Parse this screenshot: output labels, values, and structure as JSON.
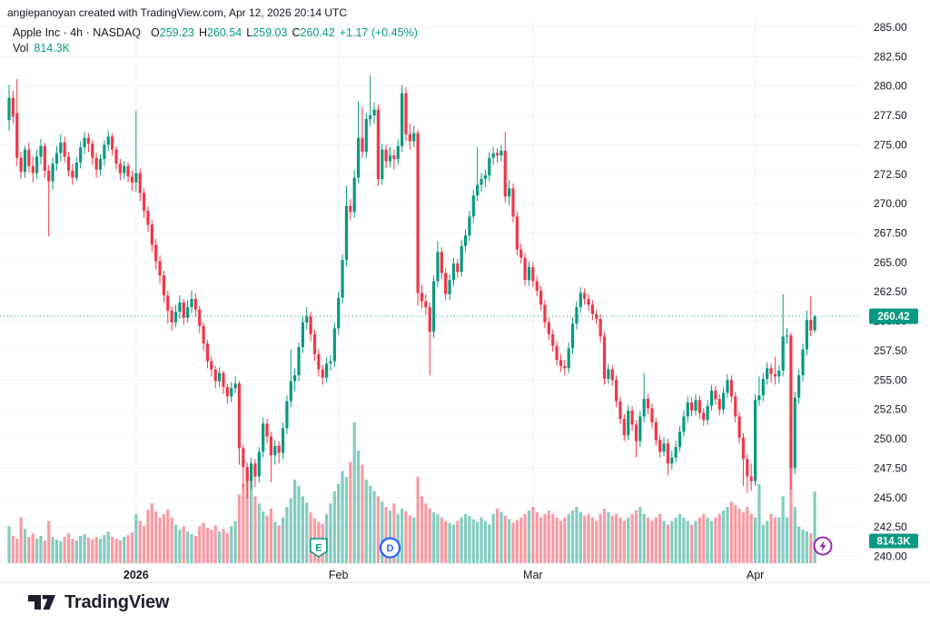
{
  "header": {
    "attribution": "angiepanoyan created with TradingView.com, Apr 12, 2026 20:14 UTC"
  },
  "legend": {
    "title": "Apple Inc · 4h · NASDAQ",
    "o_label": "O",
    "o": "259.23",
    "h_label": "H",
    "h": "260.54",
    "l_label": "L",
    "l": "259.03",
    "c_label": "C",
    "c": "260.42",
    "change": "+1.17 (+0.45%)",
    "vol_label": "Vol",
    "vol": "814.3K"
  },
  "badges": {
    "price": "260.42",
    "volume": "814.3K"
  },
  "price_axis": {
    "ticks": [
      "285.00",
      "282.50",
      "280.00",
      "277.50",
      "275.00",
      "272.50",
      "270.00",
      "267.50",
      "265.00",
      "262.50",
      "260.00",
      "257.50",
      "255.00",
      "252.50",
      "250.00",
      "247.50",
      "245.00",
      "242.50",
      "240.00"
    ]
  },
  "time_axis": {
    "ticks": [
      {
        "label": "2026",
        "idx": 32,
        "bold": true
      },
      {
        "label": "Feb",
        "idx": 83,
        "bold": false
      },
      {
        "label": "Mar",
        "idx": 132,
        "bold": false
      },
      {
        "label": "Apr",
        "idx": 188,
        "bold": false
      }
    ]
  },
  "markers": [
    {
      "type": "earnings",
      "label": "E",
      "idx": 78,
      "color": "#089981"
    },
    {
      "type": "dividends",
      "label": "D",
      "idx": 96,
      "color": "#2962FF"
    },
    {
      "type": "flash",
      "label": "",
      "x": 906,
      "color": "#9C27B0"
    }
  ],
  "footer": {
    "brand": "TradingView"
  },
  "colors": {
    "up": "#089981",
    "down": "#F23645",
    "grid": "#f0f3fa",
    "text": "#131722",
    "badge_text": "#ffffff",
    "vol_opacity": 0.5
  },
  "chart_data": {
    "type": "candlestick",
    "symbol": "Apple Inc",
    "interval": "4h",
    "exchange": "NASDAQ",
    "ylim": [
      240,
      285
    ],
    "ystep": 2.5,
    "grid": true,
    "last_close": 260.42,
    "last_volume_k": 814.3,
    "candles": [
      [
        277.1,
        280.1,
        276.2,
        279.0
      ],
      [
        279.0,
        279.6,
        276.8,
        277.4
      ],
      [
        277.7,
        280.6,
        273.2,
        273.9
      ],
      [
        273.9,
        274.4,
        272.1,
        272.7
      ],
      [
        272.7,
        274.9,
        272.2,
        274.6
      ],
      [
        274.6,
        275.2,
        272.6,
        273.2
      ],
      [
        273.2,
        274.0,
        271.8,
        272.6
      ],
      [
        272.6,
        274.6,
        272.1,
        274.0
      ],
      [
        274.0,
        275.5,
        273.3,
        274.9
      ],
      [
        274.9,
        275.2,
        272.2,
        272.8
      ],
      [
        272.8,
        273.3,
        267.2,
        271.9
      ],
      [
        271.9,
        273.9,
        271.2,
        273.4
      ],
      [
        273.4,
        274.9,
        272.8,
        274.3
      ],
      [
        274.3,
        275.9,
        273.6,
        275.2
      ],
      [
        275.2,
        275.7,
        273.5,
        274.0
      ],
      [
        274.0,
        274.4,
        272.3,
        272.8
      ],
      [
        272.8,
        273.4,
        271.6,
        272.2
      ],
      [
        272.2,
        274.0,
        271.9,
        273.5
      ],
      [
        273.5,
        275.3,
        273.0,
        274.8
      ],
      [
        274.8,
        276.1,
        274.2,
        275.6
      ],
      [
        275.6,
        276.0,
        274.4,
        275.1
      ],
      [
        275.1,
        275.4,
        273.3,
        273.9
      ],
      [
        273.9,
        274.3,
        272.2,
        272.9
      ],
      [
        272.9,
        274.2,
        272.4,
        273.8
      ],
      [
        273.8,
        275.4,
        273.2,
        275.0
      ],
      [
        275.0,
        276.2,
        274.5,
        275.7
      ],
      [
        275.7,
        276.0,
        274.1,
        274.6
      ],
      [
        274.6,
        274.9,
        272.9,
        273.4
      ],
      [
        273.4,
        273.8,
        272.0,
        272.6
      ],
      [
        272.6,
        273.6,
        272.1,
        273.2
      ],
      [
        273.2,
        273.5,
        271.8,
        272.3
      ],
      [
        272.3,
        272.8,
        271.1,
        271.8
      ],
      [
        271.8,
        277.9,
        271.0,
        272.6
      ],
      [
        272.6,
        273.0,
        270.2,
        270.9
      ],
      [
        270.9,
        271.3,
        268.8,
        269.4
      ],
      [
        269.4,
        269.8,
        267.6,
        268.2
      ],
      [
        268.2,
        268.6,
        265.9,
        266.5
      ],
      [
        266.5,
        267.0,
        264.4,
        265.1
      ],
      [
        265.1,
        265.6,
        263.2,
        263.9
      ],
      [
        263.9,
        264.3,
        261.6,
        262.2
      ],
      [
        262.2,
        262.6,
        259.8,
        260.9
      ],
      [
        260.9,
        261.3,
        259.2,
        259.9
      ],
      [
        259.9,
        261.4,
        259.5,
        260.8
      ],
      [
        260.8,
        262.2,
        260.2,
        261.6
      ],
      [
        261.6,
        261.9,
        259.7,
        260.3
      ],
      [
        260.3,
        261.8,
        259.9,
        261.2
      ],
      [
        261.2,
        262.6,
        260.7,
        261.9
      ],
      [
        261.9,
        262.4,
        260.4,
        261.0
      ],
      [
        261.0,
        261.3,
        259.0,
        259.6
      ],
      [
        259.6,
        259.9,
        257.5,
        258.1
      ],
      [
        258.1,
        258.4,
        256.0,
        256.6
      ],
      [
        256.6,
        257.0,
        255.3,
        255.9
      ],
      [
        255.9,
        256.2,
        254.3,
        254.9
      ],
      [
        254.9,
        256.1,
        254.4,
        255.6
      ],
      [
        255.6,
        255.8,
        253.8,
        254.4
      ],
      [
        254.4,
        254.7,
        253.0,
        253.6
      ],
      [
        253.6,
        254.8,
        253.1,
        254.3
      ],
      [
        254.3,
        255.3,
        253.9,
        254.7
      ],
      [
        254.7,
        254.9,
        247.8,
        249.2
      ],
      [
        249.2,
        249.5,
        245.9,
        247.6
      ],
      [
        247.6,
        248.0,
        244.9,
        246.4
      ],
      [
        246.4,
        248.4,
        245.7,
        247.9
      ],
      [
        247.9,
        248.3,
        245.9,
        246.8
      ],
      [
        246.8,
        249.3,
        246.3,
        248.9
      ],
      [
        248.9,
        251.8,
        248.4,
        251.3
      ],
      [
        251.3,
        251.7,
        249.6,
        250.2
      ],
      [
        250.2,
        250.6,
        246.3,
        248.6
      ],
      [
        248.6,
        249.9,
        247.8,
        249.4
      ],
      [
        249.4,
        249.8,
        247.9,
        248.8
      ],
      [
        248.8,
        251.4,
        248.3,
        250.9
      ],
      [
        250.9,
        253.7,
        250.4,
        253.2
      ],
      [
        253.2,
        257.6,
        252.7,
        254.9
      ],
      [
        254.9,
        256.0,
        254.1,
        255.4
      ],
      [
        255.4,
        258.2,
        254.9,
        257.8
      ],
      [
        257.8,
        260.4,
        257.3,
        259.9
      ],
      [
        259.9,
        261.2,
        259.3,
        260.4
      ],
      [
        260.4,
        260.8,
        258.3,
        258.9
      ],
      [
        258.9,
        259.3,
        256.6,
        257.2
      ],
      [
        257.2,
        257.6,
        255.3,
        255.9
      ],
      [
        255.9,
        256.3,
        254.6,
        255.2
      ],
      [
        255.2,
        256.9,
        254.8,
        256.4
      ],
      [
        256.4,
        257.1,
        255.8,
        256.6
      ],
      [
        256.6,
        259.9,
        256.1,
        259.4
      ],
      [
        259.4,
        262.5,
        258.9,
        262.0
      ],
      [
        262.0,
        265.7,
        261.5,
        265.2
      ],
      [
        265.2,
        271.5,
        264.7,
        269.8
      ],
      [
        269.8,
        270.4,
        268.6,
        269.3
      ],
      [
        269.3,
        272.8,
        268.8,
        272.2
      ],
      [
        272.2,
        278.7,
        271.7,
        275.6
      ],
      [
        275.6,
        278.2,
        273.9,
        274.4
      ],
      [
        274.4,
        277.7,
        273.9,
        277.2
      ],
      [
        277.2,
        280.9,
        276.6,
        277.5
      ],
      [
        277.5,
        278.6,
        276.8,
        278.0
      ],
      [
        278.0,
        278.4,
        271.5,
        272.1
      ],
      [
        272.1,
        275.1,
        271.6,
        274.6
      ],
      [
        274.6,
        275.0,
        273.0,
        273.6
      ],
      [
        273.6,
        274.8,
        273.1,
        274.1
      ],
      [
        274.1,
        274.6,
        272.9,
        273.8
      ],
      [
        273.8,
        275.5,
        273.3,
        274.9
      ],
      [
        274.9,
        280.1,
        274.4,
        279.4
      ],
      [
        279.4,
        279.9,
        275.3,
        275.9
      ],
      [
        275.9,
        276.8,
        274.6,
        275.3
      ],
      [
        275.3,
        276.6,
        274.8,
        276.0
      ],
      [
        276.0,
        276.3,
        261.3,
        262.4
      ],
      [
        262.4,
        263.1,
        261.1,
        261.7
      ],
      [
        261.7,
        262.3,
        260.6,
        261.2
      ],
      [
        261.2,
        261.6,
        255.4,
        259.1
      ],
      [
        259.1,
        263.9,
        258.6,
        263.4
      ],
      [
        263.4,
        266.8,
        262.9,
        265.9
      ],
      [
        265.9,
        266.3,
        263.6,
        264.1
      ],
      [
        264.1,
        264.5,
        261.8,
        262.3
      ],
      [
        262.3,
        264.0,
        261.8,
        263.5
      ],
      [
        263.5,
        265.4,
        263.0,
        264.9
      ],
      [
        264.9,
        265.3,
        263.7,
        264.2
      ],
      [
        264.2,
        266.9,
        263.8,
        266.4
      ],
      [
        266.4,
        267.8,
        265.9,
        267.3
      ],
      [
        267.3,
        269.4,
        266.8,
        268.9
      ],
      [
        268.9,
        271.2,
        268.4,
        270.7
      ],
      [
        270.7,
        274.8,
        270.2,
        271.6
      ],
      [
        271.6,
        272.6,
        271.0,
        272.1
      ],
      [
        272.1,
        272.9,
        271.4,
        272.4
      ],
      [
        272.4,
        274.4,
        271.9,
        273.9
      ],
      [
        273.9,
        274.8,
        273.3,
        274.3
      ],
      [
        274.3,
        274.7,
        273.5,
        274.1
      ],
      [
        274.1,
        275.0,
        273.6,
        274.5
      ],
      [
        274.5,
        276.1,
        270.1,
        270.6
      ],
      [
        270.6,
        272.0,
        269.9,
        271.3
      ],
      [
        271.3,
        271.7,
        268.4,
        268.9
      ],
      [
        268.9,
        269.3,
        265.6,
        266.1
      ],
      [
        266.1,
        266.6,
        264.9,
        265.4
      ],
      [
        265.4,
        265.8,
        263.0,
        263.5
      ],
      [
        263.5,
        265.1,
        263.0,
        264.6
      ],
      [
        264.6,
        265.0,
        262.9,
        263.4
      ],
      [
        263.4,
        263.8,
        262.1,
        262.6
      ],
      [
        262.6,
        263.0,
        260.9,
        261.4
      ],
      [
        261.4,
        261.8,
        259.4,
        259.9
      ],
      [
        259.9,
        260.3,
        258.4,
        258.9
      ],
      [
        258.9,
        259.3,
        257.4,
        257.9
      ],
      [
        257.9,
        258.3,
        256.2,
        256.7
      ],
      [
        256.7,
        257.2,
        255.7,
        256.2
      ],
      [
        256.2,
        256.7,
        255.4,
        256.0
      ],
      [
        256.0,
        258.2,
        255.6,
        257.7
      ],
      [
        257.7,
        260.3,
        257.2,
        259.8
      ],
      [
        259.8,
        261.7,
        259.3,
        261.2
      ],
      [
        261.2,
        262.9,
        260.7,
        262.4
      ],
      [
        262.4,
        262.8,
        261.4,
        261.9
      ],
      [
        261.9,
        262.3,
        260.9,
        261.4
      ],
      [
        261.4,
        261.8,
        260.1,
        260.6
      ],
      [
        260.6,
        261.0,
        259.7,
        260.2
      ],
      [
        260.2,
        260.6,
        258.2,
        258.7
      ],
      [
        258.7,
        259.1,
        254.6,
        255.1
      ],
      [
        255.1,
        256.4,
        254.7,
        255.9
      ],
      [
        255.9,
        256.3,
        254.5,
        255.0
      ],
      [
        255.0,
        255.4,
        252.7,
        253.2
      ],
      [
        253.2,
        253.6,
        251.2,
        251.7
      ],
      [
        251.7,
        252.1,
        249.8,
        250.3
      ],
      [
        250.3,
        252.9,
        249.9,
        252.4
      ],
      [
        252.4,
        252.8,
        250.7,
        251.2
      ],
      [
        251.2,
        251.6,
        248.4,
        249.8
      ],
      [
        249.8,
        252.4,
        249.3,
        251.9
      ],
      [
        251.9,
        255.6,
        251.4,
        253.4
      ],
      [
        253.4,
        253.8,
        252.1,
        252.6
      ],
      [
        252.6,
        253.0,
        250.9,
        251.4
      ],
      [
        251.4,
        251.8,
        249.4,
        249.9
      ],
      [
        249.9,
        250.3,
        248.4,
        248.9
      ],
      [
        248.9,
        250.1,
        248.5,
        249.6
      ],
      [
        249.6,
        250.0,
        246.9,
        247.9
      ],
      [
        247.9,
        249.0,
        247.4,
        248.4
      ],
      [
        248.4,
        249.8,
        248.0,
        249.3
      ],
      [
        249.3,
        251.1,
        248.9,
        250.6
      ],
      [
        250.6,
        252.4,
        250.2,
        251.9
      ],
      [
        251.9,
        253.6,
        251.4,
        253.1
      ],
      [
        253.1,
        253.5,
        251.9,
        252.4
      ],
      [
        252.4,
        253.8,
        252.0,
        253.3
      ],
      [
        253.3,
        253.7,
        251.7,
        252.2
      ],
      [
        252.2,
        252.6,
        251.1,
        251.6
      ],
      [
        251.6,
        253.3,
        251.2,
        252.8
      ],
      [
        252.8,
        254.6,
        252.4,
        254.1
      ],
      [
        254.1,
        254.5,
        252.9,
        253.4
      ],
      [
        253.4,
        253.8,
        252.0,
        252.5
      ],
      [
        252.5,
        254.4,
        252.1,
        253.9
      ],
      [
        253.9,
        255.5,
        253.5,
        255.0
      ],
      [
        255.0,
        255.4,
        253.1,
        253.6
      ],
      [
        253.6,
        254.0,
        251.4,
        251.9
      ],
      [
        251.9,
        252.3,
        249.6,
        250.1
      ],
      [
        250.1,
        250.5,
        246.0,
        248.3
      ],
      [
        248.3,
        248.7,
        245.4,
        246.8
      ],
      [
        246.8,
        247.9,
        245.6,
        246.4
      ],
      [
        246.4,
        253.8,
        246.0,
        253.3
      ],
      [
        253.3,
        255.3,
        252.8,
        253.7
      ],
      [
        253.7,
        255.6,
        253.2,
        255.1
      ],
      [
        255.1,
        256.5,
        254.6,
        256.0
      ],
      [
        256.0,
        256.4,
        254.8,
        255.5
      ],
      [
        255.5,
        257.0,
        254.6,
        255.3
      ],
      [
        255.3,
        256.3,
        254.7,
        255.8
      ],
      [
        255.8,
        262.3,
        255.3,
        258.7
      ],
      [
        258.7,
        259.4,
        258.1,
        258.8
      ],
      [
        258.8,
        259.0,
        245.7,
        247.5
      ],
      [
        247.5,
        254.0,
        247.0,
        253.5
      ],
      [
        253.5,
        255.9,
        253.0,
        255.4
      ],
      [
        255.4,
        258.1,
        254.9,
        257.6
      ],
      [
        257.6,
        260.9,
        257.1,
        260.1
      ],
      [
        260.1,
        262.1,
        258.7,
        259.2
      ],
      [
        259.23,
        260.54,
        259.03,
        260.42
      ]
    ],
    "volumes_k": [
      420,
      310,
      280,
      520,
      390,
      300,
      340,
      280,
      310,
      260,
      480,
      300,
      270,
      250,
      300,
      340,
      280,
      260,
      310,
      330,
      290,
      270,
      300,
      280,
      320,
      360,
      300,
      280,
      260,
      300,
      320,
      350,
      560,
      480,
      420,
      610,
      680,
      590,
      520,
      560,
      610,
      520,
      440,
      380,
      420,
      360,
      330,
      310,
      420,
      460,
      400,
      380,
      430,
      360,
      390,
      340,
      420,
      480,
      780,
      900,
      1030,
      960,
      760,
      680,
      590,
      540,
      620,
      470,
      430,
      520,
      640,
      740,
      950,
      880,
      760,
      690,
      580,
      510,
      470,
      450,
      560,
      680,
      820,
      900,
      1050,
      980,
      1150,
      1600,
      1280,
      1120,
      950,
      880,
      820,
      760,
      700,
      640,
      600,
      680,
      560,
      620,
      590,
      540,
      520,
      980,
      760,
      680,
      620,
      580,
      560,
      520,
      480,
      460,
      440,
      480,
      520,
      560,
      540,
      500,
      470,
      520,
      480,
      440,
      560,
      620,
      580,
      540,
      500,
      460,
      490,
      520,
      560,
      600,
      640,
      580,
      520,
      560,
      600,
      560,
      520,
      480,
      520,
      560,
      600,
      640,
      580,
      540,
      560,
      520,
      480,
      560,
      620,
      580,
      540,
      560,
      520,
      480,
      520,
      560,
      600,
      640,
      560,
      520,
      480,
      520,
      560,
      480,
      440,
      480,
      520,
      560,
      520,
      480,
      440,
      480,
      520,
      560,
      520,
      480,
      520,
      560,
      600,
      640,
      700,
      660,
      620,
      580,
      640,
      560,
      520,
      900,
      440,
      480,
      560,
      520,
      520,
      760,
      520,
      1100,
      640,
      420,
      380,
      360,
      340,
      814.3
    ]
  }
}
